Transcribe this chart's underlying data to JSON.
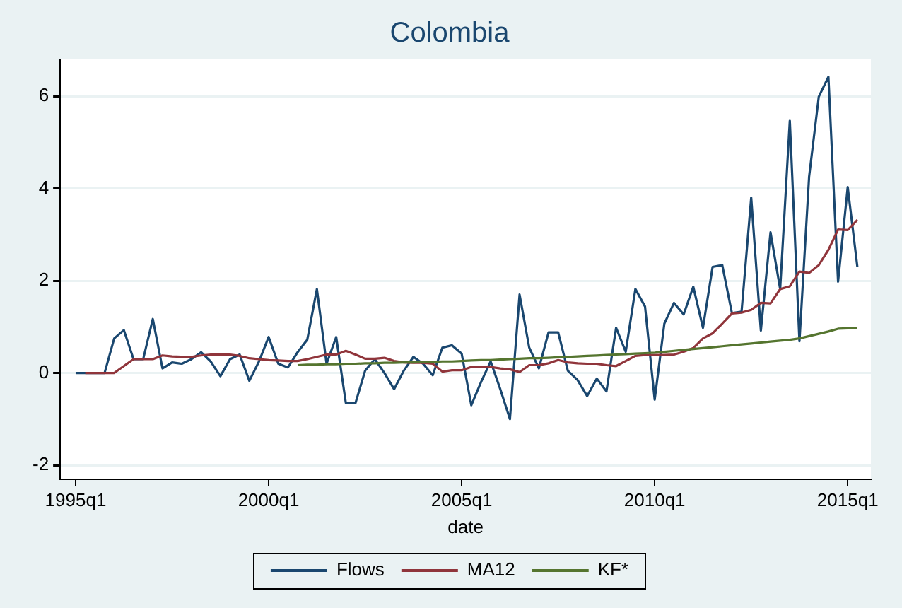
{
  "chart_data": {
    "type": "line",
    "title": "Colombia",
    "xlabel": "date",
    "categories": [
      "1995q1",
      null,
      null,
      null,
      null,
      null,
      null,
      null,
      null,
      null,
      null,
      null,
      null,
      null,
      null,
      null,
      null,
      null,
      null,
      null,
      "2000q1",
      null,
      null,
      null,
      null,
      null,
      null,
      null,
      null,
      null,
      null,
      null,
      null,
      null,
      null,
      null,
      null,
      null,
      null,
      null,
      "2005q1",
      null,
      null,
      null,
      null,
      null,
      null,
      null,
      null,
      null,
      null,
      null,
      null,
      null,
      null,
      null,
      null,
      null,
      null,
      null,
      "2010q1",
      null,
      null,
      null,
      null,
      null,
      null,
      null,
      null,
      null,
      null,
      null,
      null,
      null,
      null,
      null,
      null,
      null,
      null,
      null,
      "2015q1",
      null
    ],
    "series": [
      {
        "name": "Flows",
        "color": "#1a476f",
        "values": [
          0,
          0,
          0,
          0,
          0.75,
          0.93,
          0.3,
          0.3,
          1.17,
          0.1,
          0.23,
          0.2,
          0.3,
          0.45,
          0.25,
          -0.07,
          0.3,
          0.4,
          -0.17,
          0.25,
          0.78,
          0.2,
          0.12,
          0.45,
          0.72,
          1.82,
          0.2,
          0.78,
          -0.65,
          -0.65,
          0.05,
          0.3,
          0,
          -0.35,
          0.05,
          0.35,
          0.2,
          -0.05,
          0.55,
          0.6,
          0.42,
          -0.7,
          -0.2,
          0.25,
          -0.35,
          -1.0,
          1.7,
          0.55,
          0.1,
          0.88,
          0.88,
          0.05,
          -0.15,
          -0.5,
          -0.12,
          -0.4,
          0.98,
          0.46,
          1.82,
          1.44,
          -0.58,
          1.07,
          1.52,
          1.27,
          1.87,
          0.98,
          2.3,
          2.34,
          1.3,
          1.33,
          3.8,
          0.92,
          3.05,
          1.82,
          5.47,
          0.69,
          4.26,
          5.99,
          6.42,
          1.98,
          4.03,
          2.3
        ]
      },
      {
        "name": "MA12",
        "color": "#90353b",
        "values": [
          null,
          0,
          0,
          0,
          0,
          0.15,
          0.3,
          0.3,
          0.3,
          0.38,
          0.36,
          0.35,
          0.35,
          0.38,
          0.4,
          0.4,
          0.4,
          0.37,
          0.32,
          0.3,
          0.28,
          0.27,
          0.26,
          0.26,
          0.3,
          0.35,
          0.4,
          0.4,
          0.48,
          0.4,
          0.31,
          0.31,
          0.33,
          0.26,
          0.23,
          0.22,
          0.22,
          0.2,
          0.03,
          0.06,
          0.06,
          0.13,
          0.13,
          0.13,
          0.1,
          0.08,
          0.02,
          0.17,
          0.17,
          0.21,
          0.28,
          0.23,
          0.21,
          0.2,
          0.2,
          0.17,
          0.15,
          0.26,
          0.37,
          0.39,
          0.39,
          0.39,
          0.4,
          0.46,
          0.54,
          0.75,
          0.86,
          1.07,
          1.29,
          1.31,
          1.37,
          1.52,
          1.51,
          1.82,
          1.88,
          2.2,
          2.17,
          2.34,
          2.67,
          3.11,
          3.1,
          3.32
        ]
      },
      {
        "name": "KF*",
        "color": "#55752f",
        "values": [
          null,
          null,
          null,
          null,
          null,
          null,
          null,
          null,
          null,
          null,
          null,
          null,
          null,
          null,
          null,
          null,
          null,
          null,
          null,
          null,
          null,
          null,
          null,
          0.17,
          0.18,
          0.18,
          0.19,
          0.19,
          0.2,
          0.2,
          0.21,
          0.21,
          0.22,
          0.22,
          0.23,
          0.23,
          0.24,
          0.24,
          0.25,
          0.25,
          0.26,
          0.27,
          0.28,
          0.28,
          0.29,
          0.3,
          0.31,
          0.32,
          0.32,
          0.33,
          0.34,
          0.35,
          0.36,
          0.37,
          0.38,
          0.39,
          0.4,
          0.41,
          0.42,
          0.43,
          0.44,
          0.46,
          0.48,
          0.5,
          0.52,
          0.54,
          0.56,
          0.58,
          0.6,
          0.62,
          0.64,
          0.66,
          0.68,
          0.7,
          0.72,
          0.75,
          0.8,
          0.85,
          0.9,
          0.96,
          0.97,
          0.97
        ]
      }
    ],
    "ylim": [
      -2.3,
      6.8
    ],
    "yticks": [
      -2,
      0,
      2,
      4,
      6
    ],
    "grid": "y",
    "legend": "bottom",
    "marker": "none",
    "line_style": "solid"
  }
}
